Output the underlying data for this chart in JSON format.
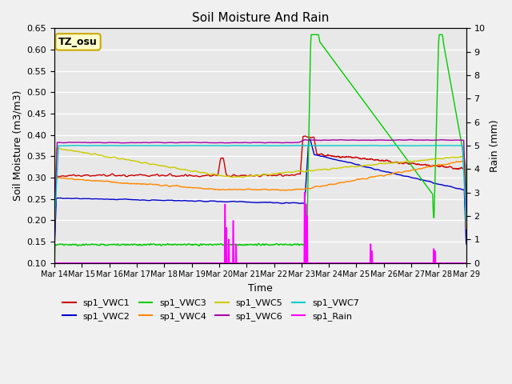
{
  "title": "Soil Moisture And Rain",
  "xlabel": "Time",
  "ylabel_left": "Soil Moisture (m3/m3)",
  "ylabel_right": "Rain (mm)",
  "xlim_days": [
    0,
    15
  ],
  "ylim_left": [
    0.1,
    0.65
  ],
  "ylim_right": [
    0.0,
    10.0
  ],
  "yticks_left": [
    0.1,
    0.15,
    0.2,
    0.25,
    0.3,
    0.35,
    0.4,
    0.45,
    0.5,
    0.55,
    0.6,
    0.65
  ],
  "yticks_right": [
    0.0,
    1.0,
    2.0,
    3.0,
    4.0,
    5.0,
    6.0,
    7.0,
    8.0,
    9.0,
    10.0
  ],
  "xtick_labels": [
    "Mar 14",
    "Mar 15",
    "Mar 16",
    "Mar 17",
    "Mar 18",
    "Mar 19",
    "Mar 20",
    "Mar 21",
    "Mar 22",
    "Mar 23",
    "Mar 24",
    "Mar 25",
    "Mar 26",
    "Mar 27",
    "Mar 28",
    "Mar 29"
  ],
  "annotation_text": "TZ_osu",
  "annotation_bg": "#FFFFCC",
  "annotation_border": "#CCAA00",
  "background_color": "#E8E8E8",
  "grid_color": "#FFFFFF",
  "colors": {
    "VWC1": "#CC0000",
    "VWC2": "#0000CC",
    "VWC3": "#00CC00",
    "VWC4": "#FF8800",
    "VWC5": "#CCCC00",
    "VWC6": "#AA00AA",
    "VWC7": "#00CCCC",
    "Rain": "#FF00FF"
  }
}
